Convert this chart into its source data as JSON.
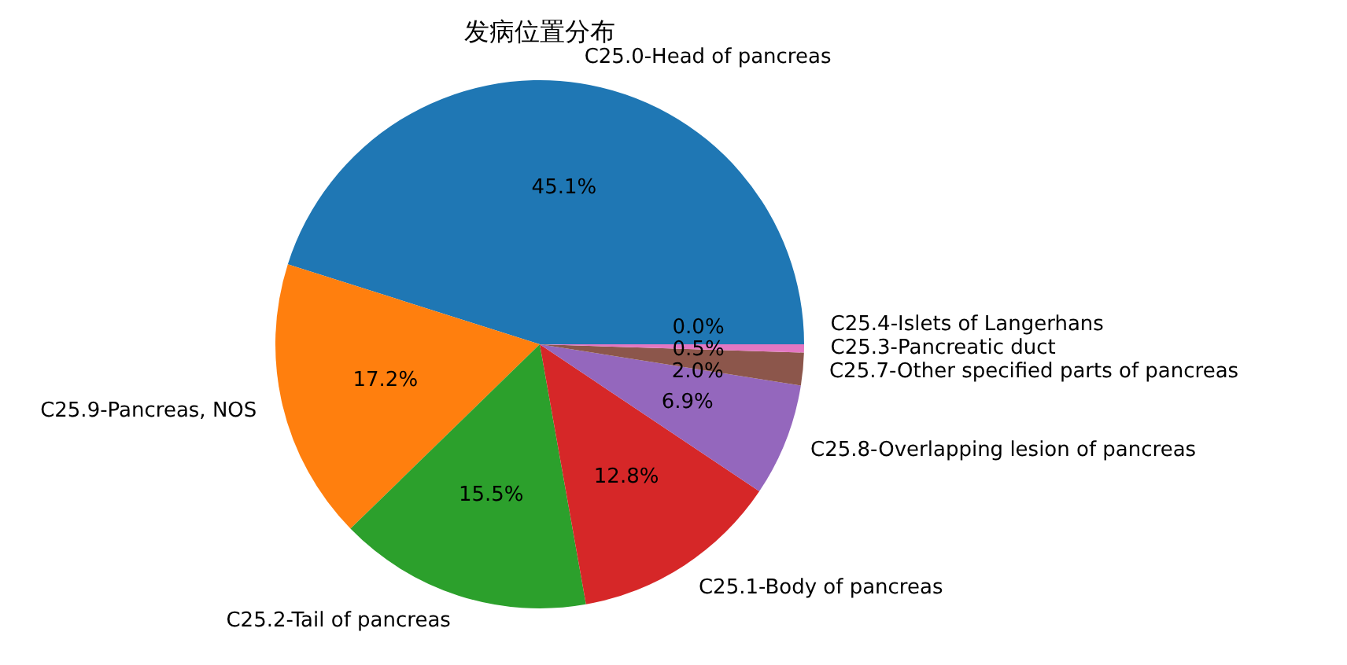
{
  "chart_data": {
    "type": "pie",
    "title": "发病位置分布",
    "categories": [
      "C25.0-Head of pancreas",
      "C25.9-Pancreas, NOS",
      "C25.2-Tail of pancreas",
      "C25.1-Body of pancreas",
      "C25.8-Overlapping lesion of pancreas",
      "C25.7-Other specified parts of pancreas",
      "C25.3-Pancreatic duct",
      "C25.4-Islets of Langerhans"
    ],
    "values": [
      45.1,
      17.2,
      15.5,
      12.8,
      6.9,
      2.0,
      0.5,
      0.0
    ],
    "colors": [
      "#1f77b4",
      "#ff7f0e",
      "#2ca02c",
      "#d62728",
      "#9467bd",
      "#8c564b",
      "#e377c2",
      "#7f7f7f"
    ],
    "value_labels": [
      "45.1%",
      "17.2%",
      "15.5%",
      "12.8%",
      "6.9%",
      "2.0%",
      "0.5%",
      "0.0%"
    ]
  }
}
